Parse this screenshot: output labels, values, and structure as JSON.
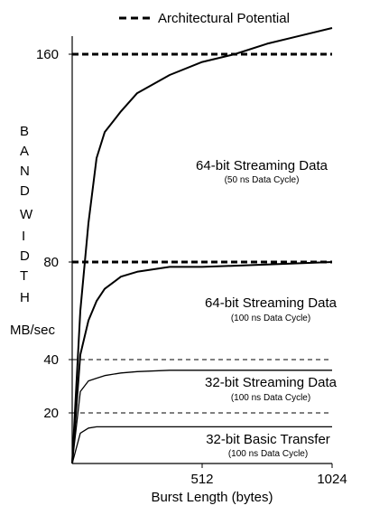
{
  "chart_data": {
    "type": "line",
    "legend": {
      "label": "Architectural Potential",
      "placement": "top-center",
      "style": "dashed"
    },
    "ylabel_letters": [
      "B",
      "A",
      "N",
      "D",
      "W",
      "I",
      "D",
      "T",
      "H"
    ],
    "ylabel_unit": "MB/sec",
    "xlabel": "Burst Length (bytes)",
    "y_ticks": [
      {
        "value": 20,
        "label": "20"
      },
      {
        "value": 40,
        "label": "40"
      },
      {
        "value": 80,
        "label": "80"
      },
      {
        "value": 160,
        "label": "160"
      }
    ],
    "x_ticks": [
      {
        "value": 512,
        "label": "512"
      },
      {
        "value": 1024,
        "label": "1024"
      }
    ],
    "xlim": [
      0,
      1024
    ],
    "reference_lines": [
      {
        "value": 160,
        "style": "thick-dashed"
      },
      {
        "value": 80,
        "style": "thick-dashed"
      },
      {
        "value": 40,
        "style": "thin-dashed"
      },
      {
        "value": 20,
        "style": "thin-dashed"
      }
    ],
    "series": [
      {
        "name": "64-bit Streaming Data",
        "subtitle": "(50 ns Data Cycle)",
        "x": [
          0,
          32,
          64,
          96,
          128,
          192,
          256,
          384,
          512,
          640,
          768,
          896,
          1024
        ],
        "y": [
          0,
          60,
          95,
          120,
          130,
          138,
          145,
          152,
          157,
          160,
          164,
          167,
          170
        ]
      },
      {
        "name": "64-bit Streaming Data",
        "subtitle": "(100 ns Data Cycle)",
        "x": [
          0,
          32,
          64,
          96,
          128,
          192,
          256,
          384,
          512,
          640,
          768,
          896,
          1024
        ],
        "y": [
          0,
          42,
          56,
          64,
          69,
          74,
          76,
          78,
          78,
          78.5,
          79,
          79.5,
          80
        ]
      },
      {
        "name": "32-bit Streaming Data",
        "subtitle": "(100 ns Data Cycle)",
        "x": [
          0,
          32,
          64,
          96,
          128,
          192,
          256,
          384,
          512,
          640,
          768,
          896,
          1024
        ],
        "y": [
          0,
          28,
          32,
          33,
          34,
          35,
          35.5,
          36,
          36,
          36,
          36,
          36,
          36
        ]
      },
      {
        "name": "32-bit Basic Transfer",
        "subtitle": "(100 ns Data Cycle)",
        "x": [
          0,
          32,
          64,
          96,
          128,
          256,
          512,
          768,
          1024
        ],
        "y": [
          0,
          12,
          14,
          14.5,
          14.5,
          14.5,
          14.5,
          14.5,
          14.5
        ]
      }
    ]
  }
}
